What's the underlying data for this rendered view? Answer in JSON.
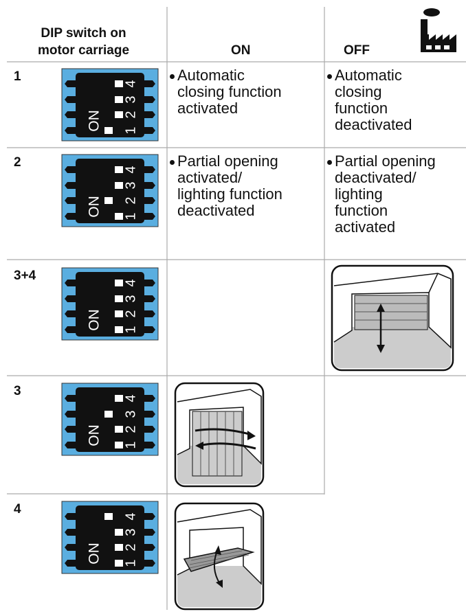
{
  "header": {
    "col1_lines": [
      "DIP switch on",
      "motor carriage"
    ],
    "on": "ON",
    "off": "OFF"
  },
  "switch_labels": {
    "on": "ON",
    "numbers": [
      "1",
      "2",
      "3",
      "4"
    ]
  },
  "rows": [
    {
      "label": "1",
      "switches": [
        true,
        false,
        false,
        false
      ],
      "on_text": [
        "Automatic",
        "closing function",
        "activated"
      ],
      "off_text": [
        "Automatic",
        "closing",
        "function",
        "deactivated"
      ]
    },
    {
      "label": "2",
      "switches": [
        false,
        true,
        false,
        false
      ],
      "on_text": [
        "Partial opening",
        "activated/",
        "lighting function",
        "deactivated"
      ],
      "off_text": [
        "Partial opening",
        "deactivated/",
        "lighting",
        "function",
        "activated"
      ]
    },
    {
      "label": "3+4",
      "switches": [
        false,
        false,
        false,
        false
      ]
    },
    {
      "label": "3",
      "switches": [
        false,
        false,
        true,
        false
      ]
    },
    {
      "label": "4",
      "switches": [
        false,
        false,
        false,
        true
      ]
    }
  ]
}
